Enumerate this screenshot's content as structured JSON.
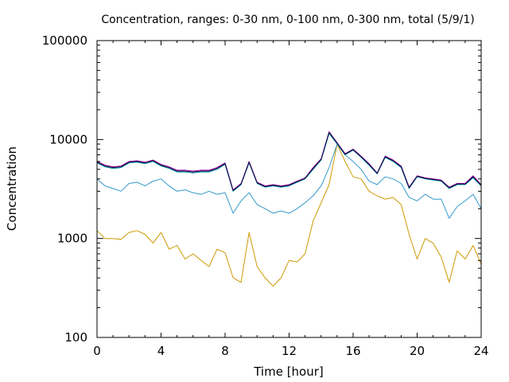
{
  "chart_data": {
    "type": "line",
    "title": "Concentration, ranges: 0-30 nm, 0-100 nm, 0-300 nm, total (5/9/1)",
    "xlabel": "Time [hour]",
    "ylabel": "Concentration",
    "xlim": [
      0,
      24
    ],
    "ylim": [
      100,
      100000
    ],
    "yscale": "log",
    "grid": false,
    "x_ticks": [
      "0",
      "4",
      "8",
      "12",
      "16",
      "20",
      "24"
    ],
    "y_ticks": [
      "100",
      "1000",
      "10000",
      "100000"
    ],
    "x": [
      0,
      0.5,
      1,
      1.5,
      2,
      2.5,
      3,
      3.5,
      4,
      4.5,
      5,
      5.5,
      6,
      6.5,
      7,
      7.5,
      8,
      8.5,
      9,
      9.5,
      10,
      10.5,
      11,
      11.5,
      12,
      12.5,
      13,
      13.5,
      14,
      14.5,
      15,
      15.5,
      16,
      16.5,
      17,
      17.5,
      18,
      18.5,
      19,
      19.5,
      20,
      20.5,
      21,
      21.5,
      22,
      22.5,
      23,
      23.5,
      24
    ],
    "series": [
      {
        "color": "#cc9900",
        "values": [
          1200,
          1000,
          1000,
          980,
          1150,
          1200,
          1100,
          900,
          1150,
          780,
          850,
          620,
          700,
          600,
          520,
          780,
          720,
          400,
          360,
          1150,
          520,
          400,
          330,
          400,
          600,
          580,
          700,
          1500,
          2300,
          3500,
          9000,
          6000,
          4200,
          4000,
          3000,
          2700,
          2500,
          2600,
          2200,
          1100,
          620,
          1000,
          900,
          650,
          360,
          750,
          620,
          850,
          550
        ]
      },
      {
        "color": "#3399cc",
        "values": [
          4000,
          3400,
          3200,
          3000,
          3600,
          3700,
          3400,
          3800,
          4000,
          3400,
          3000,
          3100,
          2900,
          2800,
          3000,
          2800,
          2900,
          1800,
          2400,
          2900,
          2200,
          2000,
          1800,
          1900,
          1800,
          2000,
          2300,
          2700,
          3400,
          5200,
          9000,
          7000,
          6000,
          5000,
          3800,
          3500,
          4200,
          4000,
          3600,
          2600,
          2400,
          2800,
          2500,
          2500,
          1600,
          2100,
          2400,
          2800,
          2000
        ]
      },
      {
        "color": "#009999",
        "values": [
          5800,
          5300,
          5100,
          5200,
          5800,
          5900,
          5700,
          6000,
          5400,
          5100,
          4700,
          4700,
          4600,
          4700,
          4700,
          5000,
          5600,
          3000,
          3500,
          5800,
          3600,
          3300,
          3400,
          3300,
          3400,
          3700,
          4000,
          5000,
          6200,
          11500,
          9000,
          7000,
          7800,
          6600,
          5500,
          4500,
          6600,
          6000,
          5200,
          3200,
          4200,
          4000,
          3900,
          3800,
          3200,
          3500,
          3500,
          4100,
          3400
        ]
      },
      {
        "color": "#990099",
        "values": [
          6000,
          5500,
          5300,
          5400,
          6000,
          6100,
          5900,
          6200,
          5600,
          5300,
          4900,
          4900,
          4800,
          4900,
          4900,
          5200,
          5800,
          3100,
          3600,
          6000,
          3700,
          3400,
          3500,
          3400,
          3500,
          3800,
          4100,
          5200,
          6400,
          12000,
          9300,
          7200,
          8000,
          6800,
          5700,
          4600,
          6800,
          6200,
          5400,
          3300,
          4300,
          4100,
          4000,
          3900,
          3300,
          3600,
          3600,
          4300,
          3500
        ]
      },
      {
        "color": "#0d0d4d",
        "values": [
          5900,
          5400,
          5200,
          5300,
          5900,
          6000,
          5800,
          6100,
          5500,
          5200,
          4800,
          4800,
          4700,
          4800,
          4800,
          5100,
          5700,
          3050,
          3550,
          5900,
          3650,
          3350,
          3450,
          3350,
          3450,
          3750,
          4050,
          5100,
          6300,
          11800,
          9200,
          7100,
          7900,
          6700,
          5600,
          4550,
          6700,
          6100,
          5300,
          3250,
          4250,
          4050,
          3950,
          3850,
          3250,
          3550,
          3550,
          4200,
          3450
        ]
      }
    ]
  }
}
